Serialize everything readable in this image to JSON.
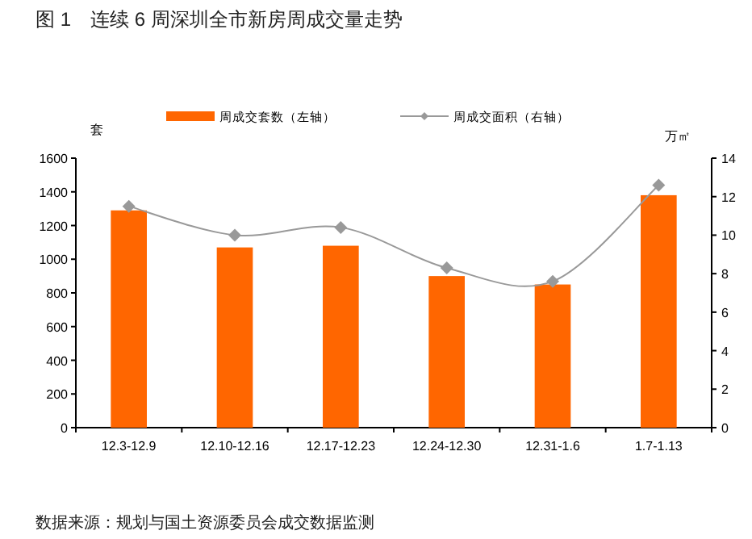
{
  "chart_data": {
    "type": "bar",
    "title": "图 1　连续 6 周深圳全市新房周成交量走势",
    "categories": [
      "12.3-12.9",
      "12.10-12.16",
      "12.17-12.23",
      "12.24-12.30",
      "12.31-1.6",
      "1.7-1.13"
    ],
    "series": [
      {
        "name": "周成交套数（左轴）",
        "color": "#ff6600",
        "values": [
          1290,
          1070,
          1080,
          900,
          850,
          1380
        ]
      },
      {
        "name": "周成交面积（右轴）",
        "type": "line",
        "axis": "y2",
        "marker": "diamond",
        "color": "#999999",
        "values": [
          11.5,
          10.0,
          10.4,
          8.3,
          7.6,
          12.6
        ]
      }
    ],
    "ylabel": "套",
    "y2label": "万㎡",
    "ylim": [
      0,
      1600
    ],
    "yticks": [
      0,
      200,
      400,
      600,
      800,
      1000,
      1200,
      1400,
      1600
    ],
    "y2lim": [
      0,
      14
    ],
    "y2ticks": [
      0,
      2,
      4,
      6,
      8,
      10,
      12,
      14
    ],
    "legend": "top",
    "annotations": [
      "数据来源：规划与国土资源委员会成交数据监测"
    ]
  }
}
